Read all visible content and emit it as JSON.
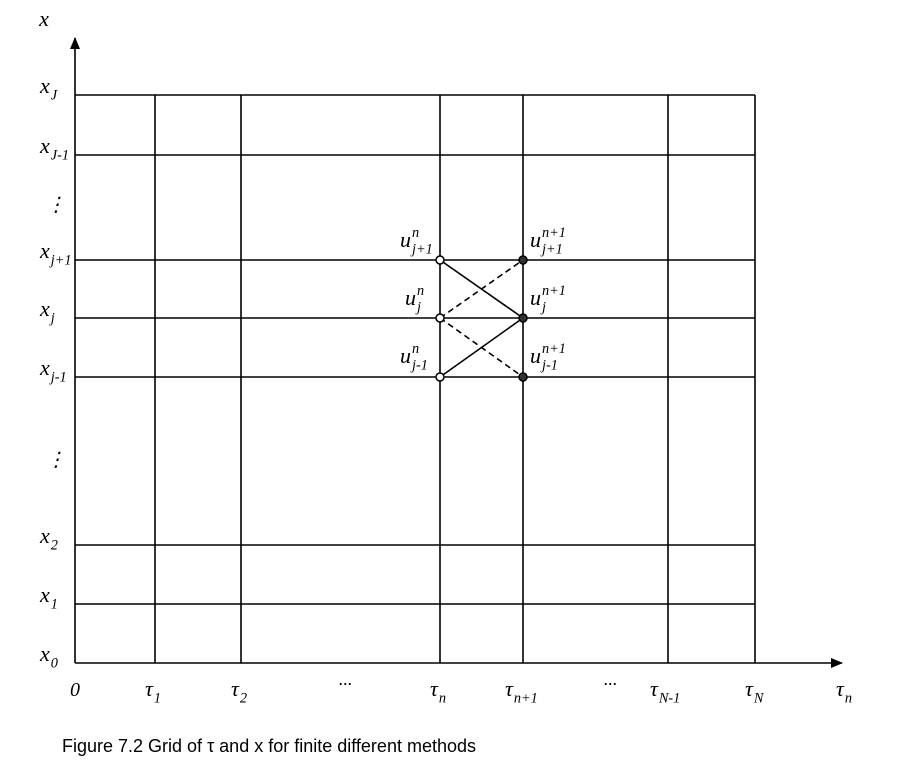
{
  "axes": {
    "vertical_label": "x",
    "horizontal_label": {
      "base": "τ",
      "sub": "n"
    },
    "origin": "0"
  },
  "row_labels": [
    {
      "base": "x",
      "sub": "J"
    },
    {
      "base": "x",
      "sub": "J-1"
    },
    "⋮",
    {
      "base": "x",
      "sub": "j+1"
    },
    {
      "base": "x",
      "sub": "j"
    },
    {
      "base": "x",
      "sub": "j-1"
    },
    "⋮",
    {
      "base": "x",
      "sub": "2"
    },
    {
      "base": "x",
      "sub": "1"
    },
    {
      "base": "x",
      "sub": "0"
    }
  ],
  "column_labels": [
    {
      "base": "τ",
      "sub": "1"
    },
    {
      "base": "τ",
      "sub": "2"
    },
    "···",
    {
      "base": "τ",
      "sub": "n"
    },
    {
      "base": "τ",
      "sub": "n+1"
    },
    "···",
    {
      "base": "τ",
      "sub": "N-1"
    },
    {
      "base": "τ",
      "sub": "N"
    }
  ],
  "node_labels": [
    {
      "base": "u",
      "sub": "j+1",
      "sup": "n"
    },
    {
      "base": "u",
      "sub": "j+1",
      "sup": "n+1"
    },
    {
      "base": "u",
      "sub": "j",
      "sup": "n"
    },
    {
      "base": "u",
      "sub": "j",
      "sup": "n+1"
    },
    {
      "base": "u",
      "sub": "j-1",
      "sup": "n"
    },
    {
      "base": "u",
      "sub": "j-1",
      "sup": "n+1"
    }
  ],
  "caption": "Figure 7.2 Grid of τ and x for finite different methods"
}
